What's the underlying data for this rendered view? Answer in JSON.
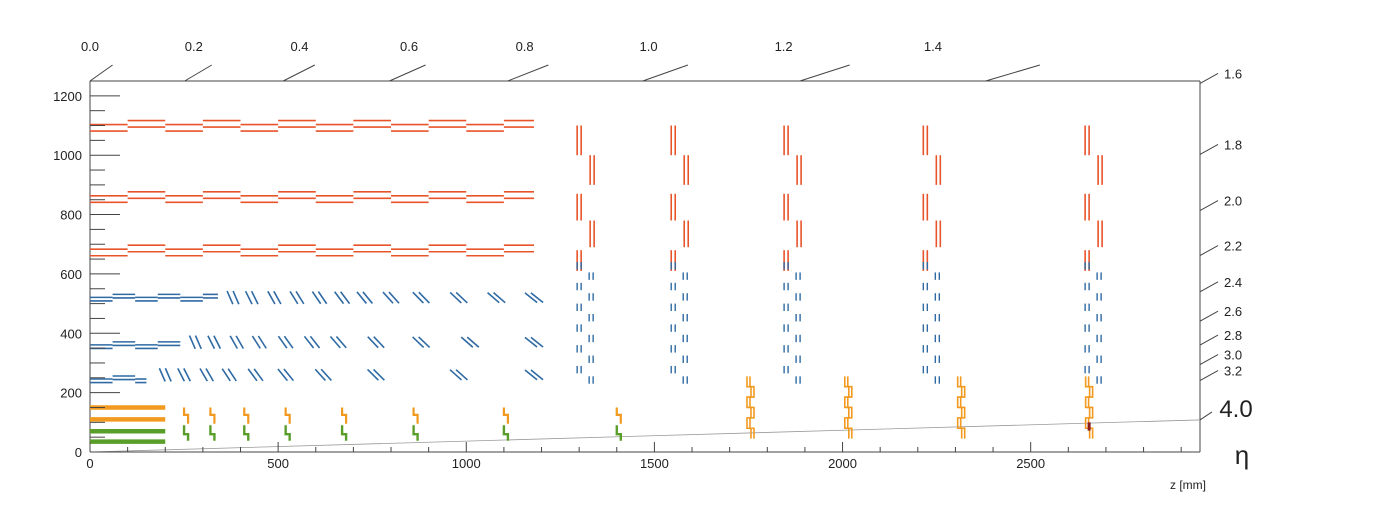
{
  "colors": {
    "outer_strip": "#e8542a",
    "strip": "#2f6aa3",
    "pixel_orange": "#f29a1f",
    "pixel_green": "#5a9e2a",
    "marker": "#8b1a1a",
    "axis": "#444444"
  },
  "labels": {
    "eta_symbol": "η",
    "eta_big": "4.0"
  },
  "axes": {
    "x": {
      "label": "z [mm]",
      "range": [
        0,
        2950
      ],
      "ticks": [
        0,
        500,
        1000,
        1500,
        2000,
        2500
      ],
      "tick_labels": [
        "0",
        "500",
        "1000",
        "1500",
        "2000",
        "2500"
      ]
    },
    "y": {
      "label": "",
      "range": [
        0,
        1250
      ],
      "ticks": [
        0,
        200,
        400,
        600,
        800,
        1000,
        1200
      ],
      "tick_labels": [
        "0",
        "200",
        "400",
        "600",
        "800",
        "1000",
        "1200"
      ]
    },
    "eta_top": {
      "values": [
        0.0,
        0.2,
        0.4,
        0.6,
        0.8,
        1.0,
        1.2,
        1.4
      ],
      "labels": [
        "0.0",
        "0.2",
        "0.4",
        "0.6",
        "0.8",
        "1.0",
        "1.2",
        "1.4"
      ]
    },
    "eta_right": {
      "values": [
        1.6,
        1.8,
        2.0,
        2.2,
        2.4,
        2.6,
        2.8,
        3.0,
        3.2
      ],
      "labels": [
        "1.6",
        "1.8",
        "2.0",
        "2.2",
        "2.4",
        "2.6",
        "2.8",
        "3.0",
        "3.2"
      ]
    },
    "eta_4": 4.0
  },
  "detector": {
    "outer_barrel": {
      "r": [
        1100,
        860,
        680
      ],
      "z_max": 1180
    },
    "strip_barrel": {
      "r": [
        520,
        360,
        245
      ],
      "z_max": [
        340,
        240,
        150
      ]
    },
    "strip_tilted": [
      {
        "r": 520,
        "z": [
          380,
          430,
          490,
          550,
          610,
          670,
          730,
          800,
          880,
          980,
          1080,
          1180
        ]
      },
      {
        "r": 370,
        "z": [
          280,
          330,
          390,
          450,
          520,
          590,
          660,
          760,
          880,
          1010,
          1180
        ]
      },
      {
        "r": 260,
        "z": [
          200,
          250,
          310,
          370,
          440,
          520,
          620,
          760,
          980,
          1180
        ]
      }
    ],
    "outer_endcap_z": [
      1300,
      1550,
      1850,
      2220,
      2650
    ],
    "strip_endcap_z": [
      1300,
      1550,
      1850,
      2220,
      2650
    ],
    "pixel_barrel_r": [
      150,
      110,
      70,
      35
    ],
    "pixel_barrel_z_max": 200,
    "pixel_fwd_z": [
      250,
      320,
      410,
      520,
      670,
      860,
      1100,
      1400
    ],
    "pixel_ext_z": [
      1750,
      2010,
      2310,
      2650
    ]
  }
}
